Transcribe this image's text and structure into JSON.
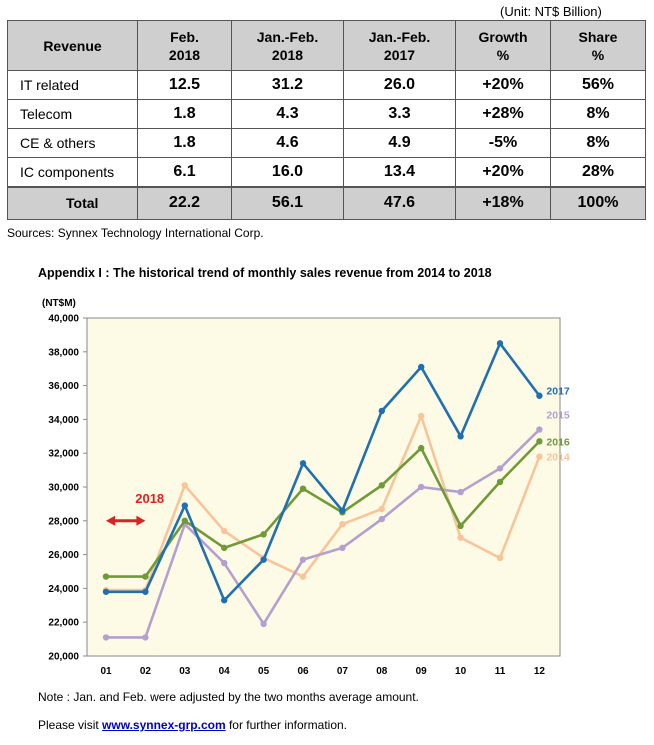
{
  "unit_text": "(Unit: NT$ Billion)",
  "table": {
    "headers": [
      {
        "line1": "Revenue",
        "line2": ""
      },
      {
        "line1": "Feb.",
        "line2": "2018"
      },
      {
        "line1": "Jan.-Feb.",
        "line2": "2018"
      },
      {
        "line1": "Jan.-Feb.",
        "line2": "2017"
      },
      {
        "line1": "Growth",
        "line2": "%"
      },
      {
        "line1": "Share",
        "line2": "%"
      }
    ],
    "rows": [
      [
        "IT related",
        "12.5",
        "31.2",
        "26.0",
        "+20%",
        "56%"
      ],
      [
        "Telecom",
        "1.8",
        "4.3",
        "3.3",
        "+28%",
        "8%"
      ],
      [
        "CE & others",
        "1.8",
        "4.6",
        "4.9",
        "-5%",
        "8%"
      ],
      [
        "IC components",
        "6.1",
        "16.0",
        "13.4",
        "+20%",
        "28%"
      ]
    ],
    "total": [
      "Total",
      "22.2",
      "56.1",
      "47.6",
      "+18%",
      "100%"
    ]
  },
  "source": "Sources: Synnex Technology International Corp.",
  "appendix_title": "Appendix I : The historical trend of monthly sales revenue from 2014 to 2018",
  "note": "Note : Jan. and Feb. were adjusted by the two months average amount.",
  "visit": {
    "prefix": "Please visit ",
    "link": "www.synnex-grp.com",
    "suffix": " for further information."
  },
  "chart_data": {
    "type": "line",
    "ylabel": "(NT$M)",
    "ylim": [
      20000,
      40000
    ],
    "yticks": [
      "20,000",
      "22,000",
      "24,000",
      "26,000",
      "28,000",
      "30,000",
      "32,000",
      "34,000",
      "36,000",
      "38,000",
      "40,000"
    ],
    "categories": [
      "01",
      "02",
      "03",
      "04",
      "05",
      "06",
      "07",
      "08",
      "09",
      "10",
      "11",
      "12"
    ],
    "grid": false,
    "plot_background": "#fdfbe6",
    "series": [
      {
        "name": "2017",
        "color": "#1f6fb2",
        "values": [
          23800,
          23800,
          28900,
          23300,
          25700,
          31400,
          28600,
          34500,
          37100,
          33000,
          38500,
          35400
        ]
      },
      {
        "name": "2015",
        "color": "#b4a0cf",
        "values": [
          21100,
          21100,
          27800,
          25500,
          21900,
          25700,
          26400,
          28100,
          30000,
          29700,
          31100,
          33400
        ]
      },
      {
        "name": "2016",
        "color": "#6f9a37",
        "values": [
          24700,
          24700,
          28000,
          26400,
          27200,
          29900,
          28500,
          30100,
          32300,
          27700,
          30300,
          32700
        ]
      },
      {
        "name": "2014",
        "color": "#f9c49a",
        "values": [
          23900,
          23900,
          30100,
          27400,
          25800,
          24700,
          27800,
          28700,
          34200,
          27000,
          25800,
          31800
        ]
      }
    ],
    "annotation": {
      "label": "2018",
      "color": "#e02020",
      "y": 28000,
      "from": "01",
      "to": "02"
    }
  }
}
